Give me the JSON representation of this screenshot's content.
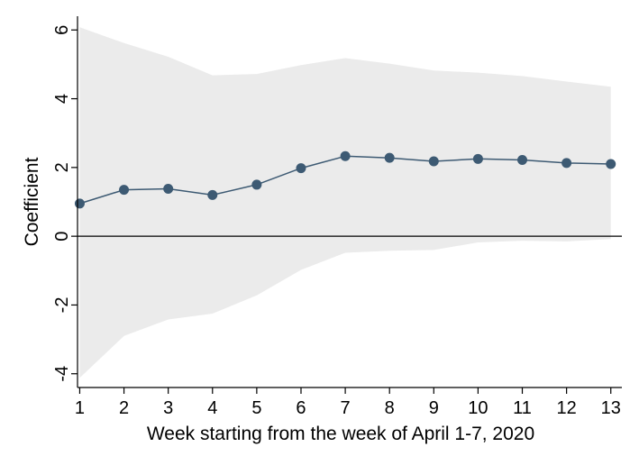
{
  "chart_data": {
    "type": "line",
    "title": "",
    "xlabel": "Week starting from the week of April 1-7, 2020",
    "ylabel": "Coefficient",
    "x": [
      1,
      2,
      3,
      4,
      5,
      6,
      7,
      8,
      9,
      10,
      11,
      12,
      13
    ],
    "xticks": [
      "1",
      "2",
      "3",
      "4",
      "5",
      "6",
      "7",
      "8",
      "9",
      "10",
      "11",
      "12",
      "13"
    ],
    "xlim": [
      0.95,
      13.25
    ],
    "ylim": [
      -4.4,
      6.4
    ],
    "yticks": [
      -4,
      -2,
      0,
      2,
      4,
      6
    ],
    "ytick_labels": [
      "-4",
      "-2",
      "0",
      "2",
      "4",
      "6"
    ],
    "series": [
      {
        "values": [
          0.95,
          1.35,
          1.38,
          1.2,
          1.5,
          1.98,
          2.33,
          2.28,
          2.18,
          2.25,
          2.22,
          2.13,
          2.1
        ],
        "color": "#3d5a73"
      }
    ],
    "confidence_band": {
      "upper": [
        6.08,
        5.62,
        5.22,
        4.68,
        4.72,
        4.98,
        5.18,
        5.02,
        4.82,
        4.76,
        4.66,
        4.5,
        4.35
      ],
      "lower": [
        -4.12,
        -2.9,
        -2.42,
        -2.25,
        -1.72,
        -0.98,
        -0.48,
        -0.42,
        -0.4,
        -0.18,
        -0.13,
        -0.15,
        -0.08
      ],
      "color": "#ebebeb"
    },
    "reference_line": 0,
    "grid": false,
    "legend": "none"
  }
}
